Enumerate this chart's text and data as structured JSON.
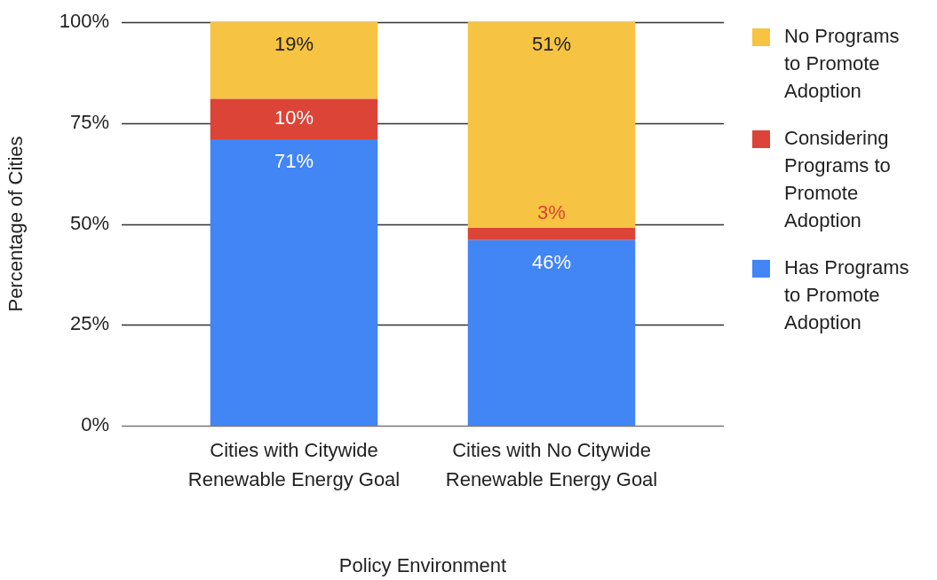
{
  "chart_data": {
    "type": "bar",
    "stacked": true,
    "categories": [
      "Cities with Citywide Renewable Energy Goal",
      "Cities with No Citywide Renewable Energy Goal"
    ],
    "series": [
      {
        "name": "Has Programs to Promote Adoption",
        "color": "#4285f4",
        "values": [
          71,
          46
        ],
        "value_labels": [
          "71%",
          "46%"
        ]
      },
      {
        "name": "Considering Programs to Promote Adoption",
        "color": "#db4437",
        "values": [
          10,
          3
        ],
        "value_labels": [
          "10%",
          "3%"
        ]
      },
      {
        "name": "No Programs to Promote Adoption",
        "color": "#f6c342",
        "values": [
          19,
          51
        ],
        "value_labels": [
          "19%",
          "51%"
        ]
      }
    ],
    "ylim": [
      0,
      100
    ],
    "yticks": [
      {
        "value": 0,
        "label": "0%"
      },
      {
        "value": 25,
        "label": "25%"
      },
      {
        "value": 50,
        "label": "50%"
      },
      {
        "value": 75,
        "label": "75%"
      },
      {
        "value": 100,
        "label": "100%"
      }
    ],
    "xlabel": "Policy Environment",
    "ylabel": "Percentage of Cities",
    "grid": "y",
    "legend": "right"
  }
}
